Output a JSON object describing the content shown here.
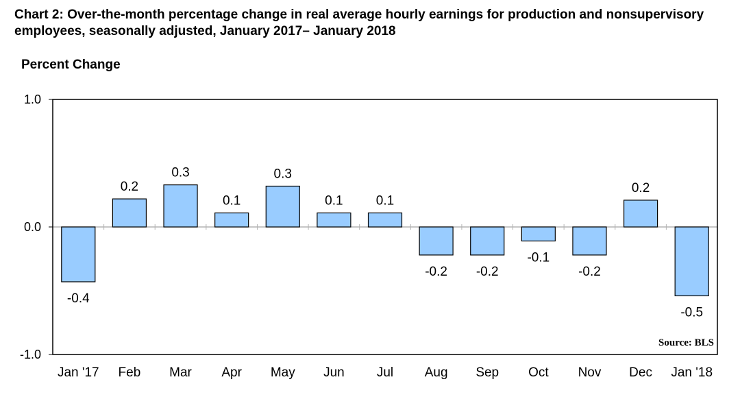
{
  "title": "Chart 2: Over-the-month percentage change in real average hourly earnings for production and nonsupervisory employees, seasonally adjusted, January 2017– January 2018",
  "ylabel": "Percent Change",
  "source": "Source: BLS",
  "colors": {
    "bar": "#99ccff",
    "bar_stroke": "#000000",
    "zero_line": "#b3b3b3"
  },
  "chart_data": {
    "type": "bar",
    "title": "Chart 2: Over-the-month percentage change in real average hourly earnings for production and nonsupervisory employees, seasonally adjusted, January 2017– January 2018",
    "xlabel": "",
    "ylabel": "Percent Change",
    "ylim": [
      -1.0,
      1.0
    ],
    "yticks": [
      "1.0",
      "0.0",
      "-1.0"
    ],
    "ytick_values": [
      1.0,
      0.0,
      -1.0
    ],
    "categories": [
      "Jan '17",
      "Feb",
      "Mar",
      "Apr",
      "May",
      "Jun",
      "Jul",
      "Aug",
      "Sep",
      "Oct",
      "Nov",
      "Dec",
      "Jan '18"
    ],
    "values": [
      -0.43,
      0.22,
      0.33,
      0.11,
      0.32,
      0.11,
      0.11,
      -0.22,
      -0.22,
      -0.11,
      -0.22,
      0.21,
      -0.54
    ],
    "data_labels": [
      "-0.4",
      "0.2",
      "0.3",
      "0.1",
      "0.3",
      "0.1",
      "0.1",
      "-0.2",
      "-0.2",
      "-0.1",
      "-0.2",
      "0.2",
      "-0.5"
    ],
    "grid": false,
    "legend": "none"
  }
}
